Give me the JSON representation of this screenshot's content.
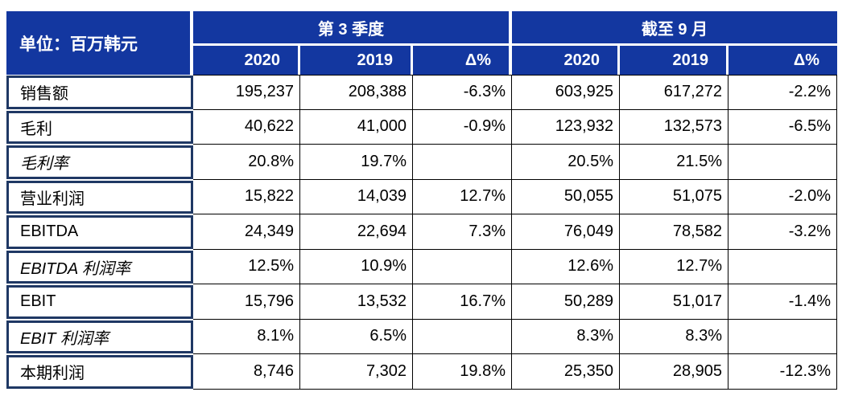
{
  "colors": {
    "header_bg": "#1337A0",
    "label_border": "#1F3864",
    "grid_line": "#000000",
    "header_text": "#FFFFFF",
    "body_text": "#000000"
  },
  "chart_data": {
    "type": "table",
    "unit_label": "单位：百万韩元",
    "column_groups": [
      {
        "label": "第 3 季度"
      },
      {
        "label": "截至 9 月"
      }
    ],
    "sub_headers": [
      "2020",
      "2019",
      "Δ%",
      "2020",
      "2019",
      "Δ%"
    ],
    "rows": [
      {
        "label": "销售额",
        "italic": false,
        "values": [
          "195,237",
          "208,388",
          "-6.3%",
          "603,925",
          "617,272",
          "-2.2%"
        ]
      },
      {
        "label": "毛利",
        "italic": false,
        "values": [
          "40,622",
          "41,000",
          "-0.9%",
          "123,932",
          "132,573",
          "-6.5%"
        ]
      },
      {
        "label": "毛利率",
        "italic": true,
        "values": [
          "20.8%",
          "19.7%",
          "",
          "20.5%",
          "21.5%",
          ""
        ]
      },
      {
        "label": "营业利润",
        "italic": false,
        "values": [
          "15,822",
          "14,039",
          "12.7%",
          "50,055",
          "51,075",
          "-2.0%"
        ]
      },
      {
        "label": "EBITDA",
        "italic": false,
        "values": [
          "24,349",
          "22,694",
          "7.3%",
          "76,049",
          "78,582",
          "-3.2%"
        ]
      },
      {
        "label": "EBITDA 利润率",
        "italic": true,
        "values": [
          "12.5%",
          "10.9%",
          "",
          "12.6%",
          "12.7%",
          ""
        ]
      },
      {
        "label": "EBIT",
        "italic": false,
        "values": [
          "15,796",
          "13,532",
          "16.7%",
          "50,289",
          "51,017",
          "-1.4%"
        ]
      },
      {
        "label": "EBIT 利润率",
        "italic": true,
        "values": [
          "8.1%",
          "6.5%",
          "",
          "8.3%",
          "8.3%",
          ""
        ]
      },
      {
        "label": "本期利润",
        "italic": false,
        "values": [
          "8,746",
          "7,302",
          "19.8%",
          "25,350",
          "28,905",
          "-12.3%"
        ]
      }
    ]
  }
}
